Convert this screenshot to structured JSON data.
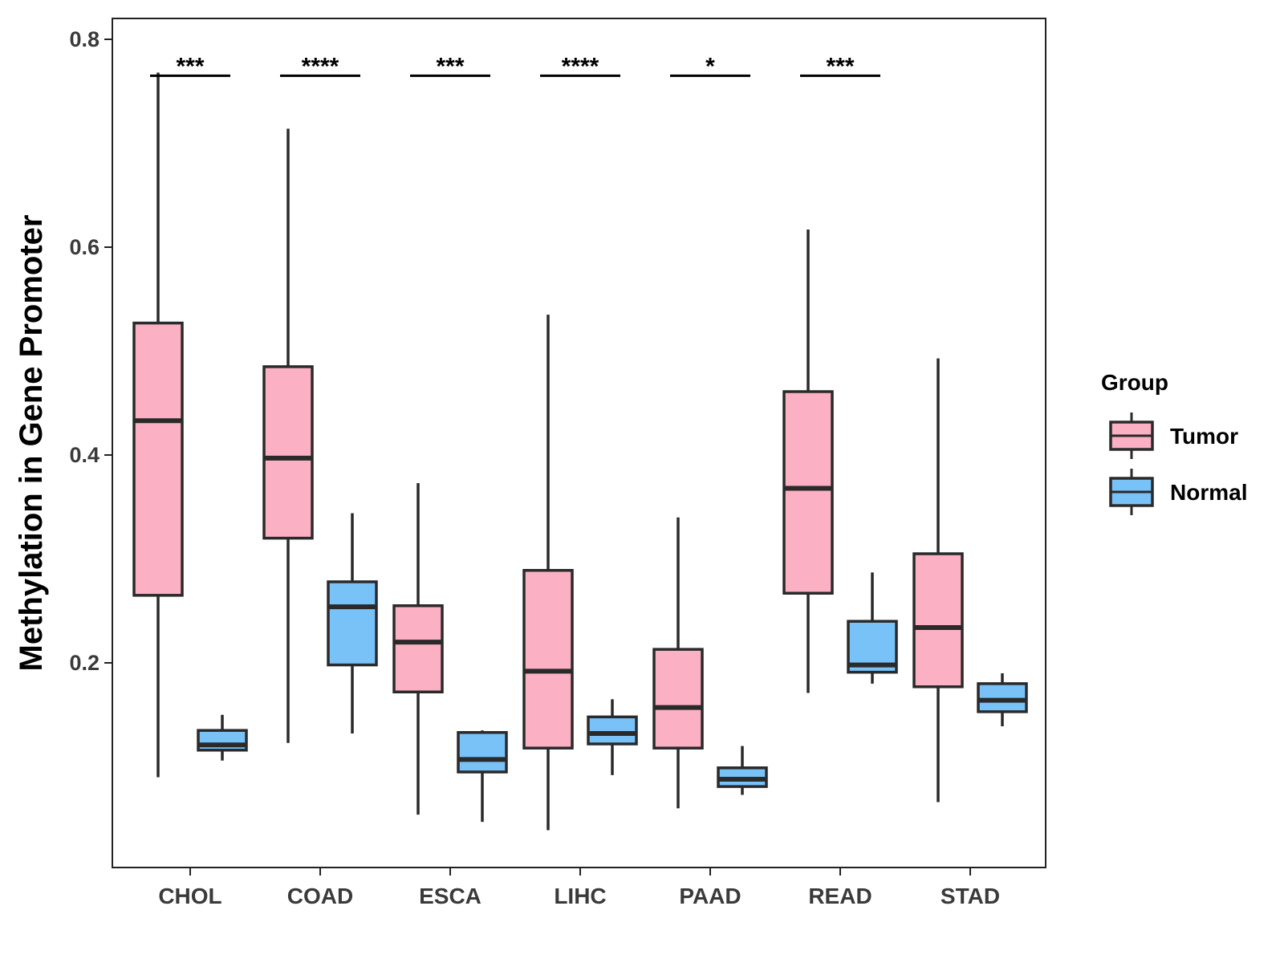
{
  "chart_data": {
    "type": "boxplot",
    "title": "",
    "xlabel": "",
    "ylabel": "Methylation in Gene Promoter",
    "ylim": [
      0.0,
      0.82
    ],
    "yticks": [
      0.2,
      0.4,
      0.6,
      0.8
    ],
    "ytick_labels": [
      "0.2",
      "0.4",
      "0.6",
      "0.8"
    ],
    "categories": [
      "CHOL",
      "COAD",
      "ESCA",
      "LIHC",
      "PAAD",
      "READ",
      "STAD"
    ],
    "legend": {
      "title": "Group",
      "position": "right",
      "entries": [
        {
          "name": "Tumor",
          "color": "#FBB0C3"
        },
        {
          "name": "Normal",
          "color": "#78C2F8"
        }
      ]
    },
    "series": [
      {
        "name": "Tumor",
        "color": "#FBB0C3",
        "boxes": [
          {
            "category": "CHOL",
            "min": 0.09,
            "q1": 0.265,
            "median": 0.433,
            "q3": 0.527,
            "max": 0.768
          },
          {
            "category": "COAD",
            "min": 0.123,
            "q1": 0.32,
            "median": 0.397,
            "q3": 0.485,
            "max": 0.714
          },
          {
            "category": "ESCA",
            "min": 0.054,
            "q1": 0.172,
            "median": 0.22,
            "q3": 0.255,
            "max": 0.373
          },
          {
            "category": "LIHC",
            "min": 0.039,
            "q1": 0.118,
            "median": 0.192,
            "q3": 0.289,
            "max": 0.535
          },
          {
            "category": "PAAD",
            "min": 0.06,
            "q1": 0.118,
            "median": 0.157,
            "q3": 0.213,
            "max": 0.34
          },
          {
            "category": "READ",
            "min": 0.171,
            "q1": 0.267,
            "median": 0.368,
            "q3": 0.461,
            "max": 0.617
          },
          {
            "category": "STAD",
            "min": 0.066,
            "q1": 0.177,
            "median": 0.234,
            "q3": 0.305,
            "max": 0.493
          }
        ]
      },
      {
        "name": "Normal",
        "color": "#78C2F8",
        "boxes": [
          {
            "category": "CHOL",
            "min": 0.106,
            "q1": 0.116,
            "median": 0.121,
            "q3": 0.135,
            "max": 0.15
          },
          {
            "category": "COAD",
            "min": 0.132,
            "q1": 0.198,
            "median": 0.254,
            "q3": 0.278,
            "max": 0.344
          },
          {
            "category": "ESCA",
            "min": 0.047,
            "q1": 0.095,
            "median": 0.107,
            "q3": 0.133,
            "max": 0.135
          },
          {
            "category": "LIHC",
            "min": 0.092,
            "q1": 0.122,
            "median": 0.132,
            "q3": 0.148,
            "max": 0.165
          },
          {
            "category": "PAAD",
            "min": 0.073,
            "q1": 0.081,
            "median": 0.088,
            "q3": 0.099,
            "max": 0.12
          },
          {
            "category": "READ",
            "min": 0.18,
            "q1": 0.191,
            "median": 0.198,
            "q3": 0.24,
            "max": 0.287
          },
          {
            "category": "STAD",
            "min": 0.139,
            "q1": 0.153,
            "median": 0.164,
            "q3": 0.18,
            "max": 0.19
          }
        ]
      }
    ],
    "annotations": [
      {
        "category": "CHOL",
        "label": "***",
        "y": 0.765
      },
      {
        "category": "COAD",
        "label": "****",
        "y": 0.765
      },
      {
        "category": "ESCA",
        "label": "***",
        "y": 0.765
      },
      {
        "category": "LIHC",
        "label": "****",
        "y": 0.765
      },
      {
        "category": "PAAD",
        "label": "*",
        "y": 0.765
      },
      {
        "category": "READ",
        "label": "***",
        "y": 0.765
      }
    ]
  }
}
